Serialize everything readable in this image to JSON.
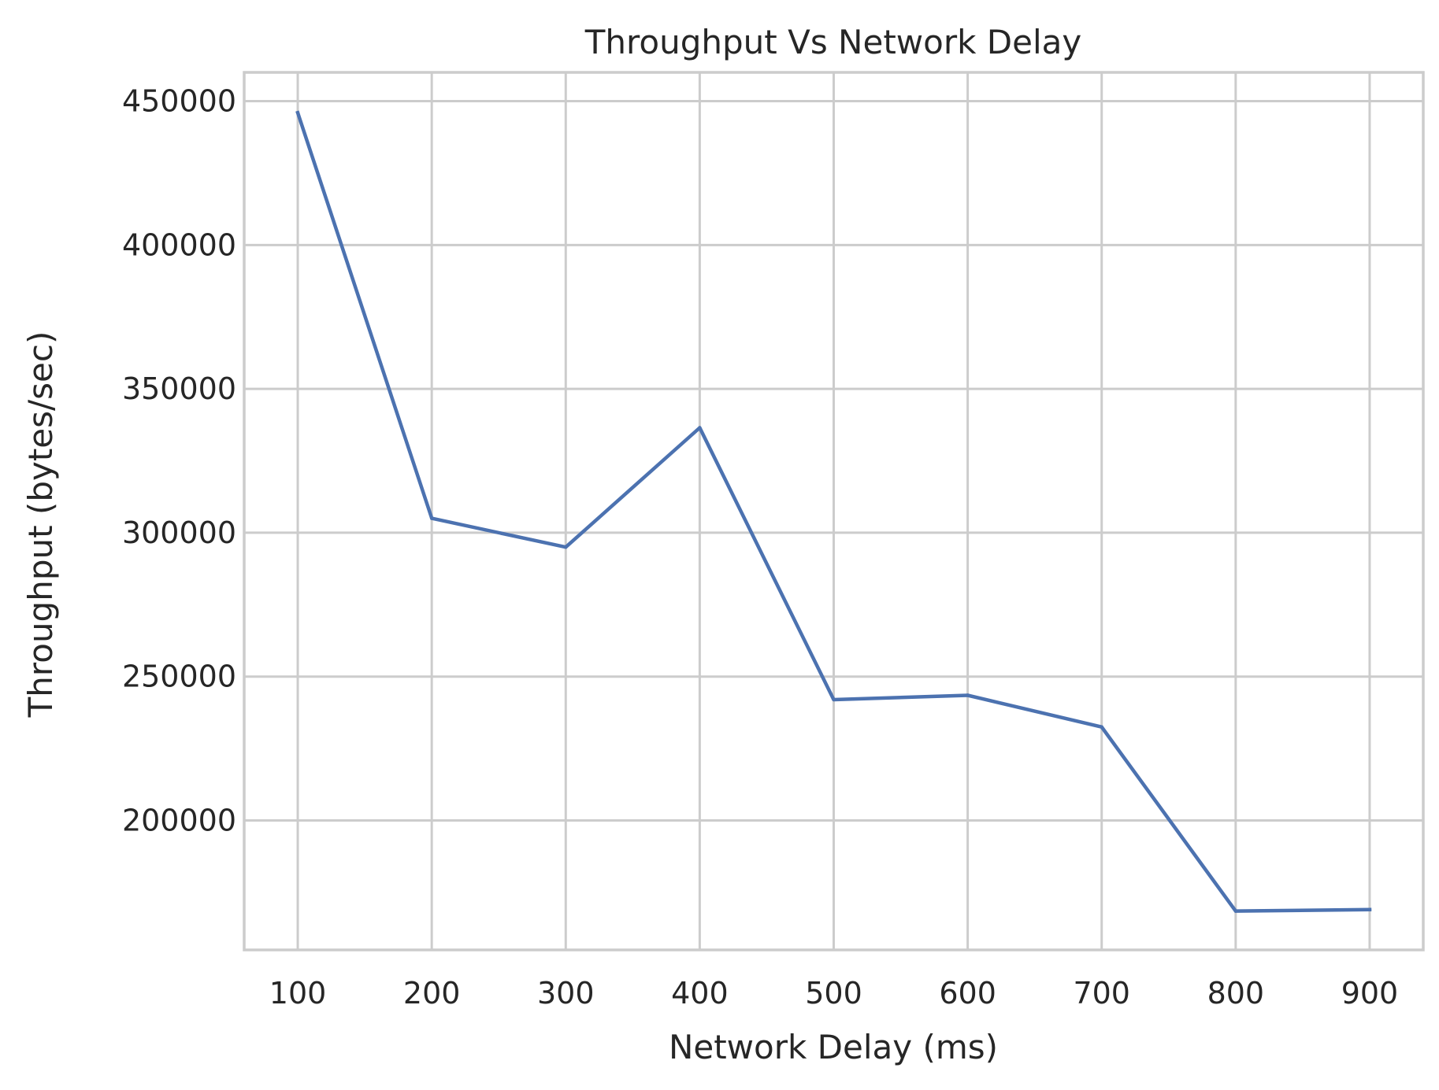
{
  "chart_data": {
    "type": "line",
    "title": "Throughput Vs Network Delay",
    "xlabel": "Network Delay (ms)",
    "ylabel": "Throughput (bytes/sec)",
    "xlim": [
      60,
      940
    ],
    "ylim": [
      155000,
      460000
    ],
    "xticks": [
      100,
      200,
      300,
      400,
      500,
      600,
      700,
      800,
      900
    ],
    "yticks": [
      200000,
      250000,
      300000,
      350000,
      400000,
      450000
    ],
    "xtick_labels": [
      "100",
      "200",
      "300",
      "400",
      "500",
      "600",
      "700",
      "800",
      "900"
    ],
    "ytick_labels": [
      "200000",
      "250000",
      "300000",
      "350000",
      "400000",
      "450000"
    ],
    "grid": true,
    "legend": "none",
    "series": [
      {
        "color": "#4c72b0",
        "x": [
          100,
          200,
          300,
          400,
          500,
          600,
          700,
          800,
          900
        ],
        "y": [
          446000,
          305000,
          295000,
          336500,
          242000,
          243500,
          232500,
          168500,
          169000
        ]
      }
    ]
  }
}
